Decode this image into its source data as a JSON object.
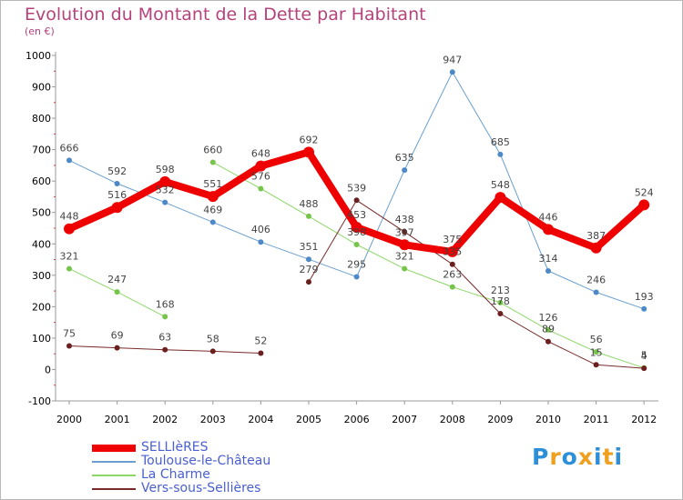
{
  "header": {
    "title": "Evolution du Montant de la Dette par Habitant",
    "subtitle": "(en €)"
  },
  "colors": {
    "title": "#b5427a",
    "axis": "#999999",
    "legend_text": "#4a5fd0"
  },
  "chart_data": {
    "type": "line",
    "title": "Evolution du Montant de la Dette par Habitant",
    "subtitle": "(en €)",
    "x": [
      "2000",
      "2001",
      "2002",
      "2003",
      "2004",
      "2005",
      "2006",
      "2007",
      "2008",
      "2009",
      "2010",
      "2011",
      "2012"
    ],
    "ylim": [
      -100,
      1000
    ],
    "yticks": [
      -100,
      0,
      100,
      200,
      300,
      400,
      500,
      600,
      700,
      800,
      900,
      1000
    ],
    "grid": false,
    "legend_position": "bottom-left",
    "series": [
      {
        "name": "SELLIèRES",
        "color": "#ee0000",
        "marker": "#ee0000",
        "width": 8,
        "values": [
          448,
          516,
          598,
          551,
          648,
          692,
          453,
          397,
          375,
          548,
          446,
          387,
          524
        ],
        "labels": [
          "448",
          "516",
          "598",
          "551",
          "648",
          "692",
          "453",
          "397",
          "375",
          "548",
          "446",
          "387",
          "524"
        ]
      },
      {
        "name": "Toulouse-le-Château",
        "color": "#6a9fcf",
        "marker": "#4d89c8",
        "width": 1,
        "values": [
          666,
          592,
          532,
          469,
          406,
          351,
          295,
          635,
          947,
          685,
          314,
          246,
          193
        ],
        "labels": [
          "666",
          "592",
          "532",
          "469",
          "406",
          "351",
          "295",
          "635",
          "947",
          "685",
          "314",
          "246",
          "193"
        ]
      },
      {
        "name": "La Charme",
        "color": "#8ed86a",
        "marker": "#76c44a",
        "width": 1,
        "values": [
          321,
          247,
          168,
          660,
          576,
          488,
          398,
          321,
          263,
          213,
          126,
          56,
          5
        ],
        "labels": [
          "321",
          "247",
          "168",
          "660",
          "576",
          "488",
          "398",
          "321",
          "263",
          "213",
          "126",
          "56",
          "5"
        ]
      },
      {
        "name": "Vers-sous-Sellières",
        "color": "#7a2a2a",
        "marker": "#6b1f1f",
        "width": 1,
        "values": [
          75,
          69,
          63,
          58,
          52,
          279,
          539,
          438,
          335,
          178,
          89,
          15,
          4
        ],
        "labels": [
          "75",
          "69",
          "63",
          "58",
          "52",
          "279",
          "539",
          "438",
          "335",
          "178",
          "89",
          "15",
          "4"
        ]
      }
    ],
    "segment_breaks": {
      "Toulouse-le-Château": [],
      "La Charme": [
        2
      ],
      "Vers-sous-Sellières": [
        4
      ]
    }
  },
  "legend": {
    "items": [
      {
        "label": "SELLIèRES",
        "color": "#ee0000"
      },
      {
        "label": "Toulouse-le-Château",
        "color": "#6a9fcf"
      },
      {
        "label": "La Charme",
        "color": "#8ed86a"
      },
      {
        "label": "Vers-sous-Sellières",
        "color": "#7a2a2a"
      }
    ]
  },
  "logo": {
    "text": "Proxiti",
    "letters": [
      "P",
      "r",
      "o",
      "x",
      "i",
      "t",
      "i"
    ],
    "letter_colors": [
      "#2d8fd8",
      "#f0a020",
      "#2d8fd8",
      "#f0a020",
      "#2d8fd8",
      "#f0a020",
      "#2d8fd8"
    ]
  }
}
